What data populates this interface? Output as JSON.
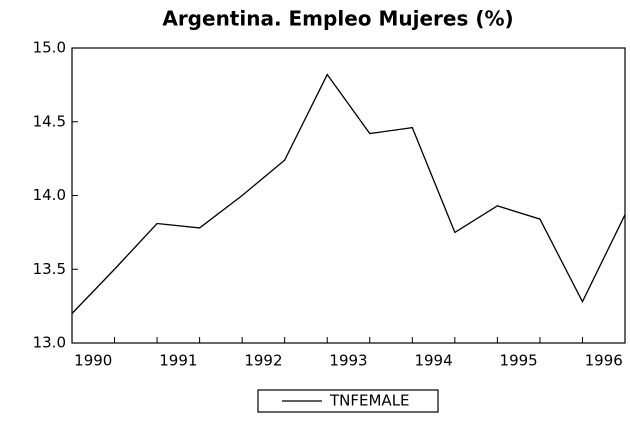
{
  "chart_data": {
    "type": "line",
    "title": "Argentina. Empleo Mujeres (%)",
    "categories": [
      "1990",
      null,
      "1991",
      null,
      "1992",
      null,
      "1993",
      null,
      "1994",
      null,
      "1995",
      null,
      "1996",
      null
    ],
    "series": [
      {
        "name": "TNFEMALE",
        "color": "#000000",
        "values": [
          13.2,
          13.5,
          13.81,
          13.78,
          14.0,
          14.24,
          14.82,
          14.42,
          14.46,
          13.75,
          13.93,
          13.84,
          13.28,
          13.87
        ]
      }
    ],
    "ylim": [
      13.0,
      15.0
    ],
    "yticks": [
      {
        "value": 13.0,
        "label": "13.0"
      },
      {
        "value": 13.5,
        "label": "13.5"
      },
      {
        "value": 14.0,
        "label": "14.0"
      },
      {
        "value": 14.5,
        "label": "14.5"
      },
      {
        "value": 15.0,
        "label": "15.0"
      }
    ],
    "grid": false
  }
}
